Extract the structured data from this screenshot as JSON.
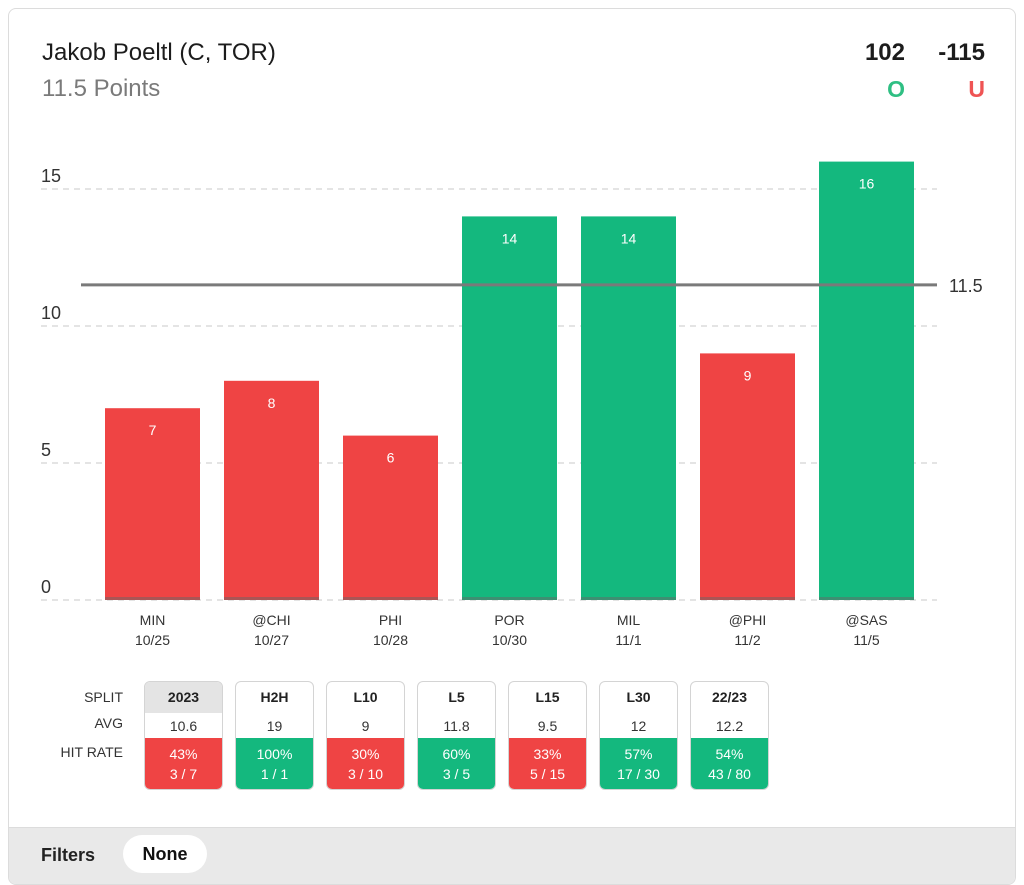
{
  "header": {
    "player": "Jakob Poeltl (C, TOR)",
    "prop": "11.5 Points",
    "over_odds": "102",
    "under_odds": "-115",
    "over_label": "O",
    "under_label": "U"
  },
  "colors": {
    "over": "#14b87e",
    "under": "#ef4444",
    "line": "#7a7a7a"
  },
  "chart_data": {
    "type": "bar",
    "categories": [
      "MIN",
      "@CHI",
      "PHI",
      "POR",
      "MIL",
      "@PHI",
      "@SAS"
    ],
    "dates": [
      "10/25",
      "10/27",
      "10/28",
      "10/30",
      "11/1",
      "11/2",
      "11/5"
    ],
    "values": [
      7,
      8,
      6,
      14,
      14,
      9,
      16
    ],
    "threshold": 11.5,
    "threshold_label": "11.5",
    "yticks": [
      0,
      5,
      10,
      15
    ],
    "ylim": [
      0,
      17
    ],
    "grid": true,
    "title": "",
    "xlabel": "",
    "ylabel": ""
  },
  "splits": {
    "row_labels": {
      "split": "SPLIT",
      "avg": "AVG",
      "hit_rate": "HIT RATE"
    },
    "columns": [
      {
        "label": "2023",
        "avg": "10.6",
        "pct": "43%",
        "record": "3 / 7",
        "status": "under",
        "selected": true
      },
      {
        "label": "H2H",
        "avg": "19",
        "pct": "100%",
        "record": "1 / 1",
        "status": "over",
        "selected": false
      },
      {
        "label": "L10",
        "avg": "9",
        "pct": "30%",
        "record": "3 / 10",
        "status": "under",
        "selected": false
      },
      {
        "label": "L5",
        "avg": "11.8",
        "pct": "60%",
        "record": "3 / 5",
        "status": "over",
        "selected": false
      },
      {
        "label": "L15",
        "avg": "9.5",
        "pct": "33%",
        "record": "5 / 15",
        "status": "under",
        "selected": false
      },
      {
        "label": "L30",
        "avg": "12",
        "pct": "57%",
        "record": "17 / 30",
        "status": "over",
        "selected": false
      },
      {
        "label": "22/23",
        "avg": "12.2",
        "pct": "54%",
        "record": "43 / 80",
        "status": "over",
        "selected": false
      }
    ]
  },
  "filters": {
    "label": "Filters",
    "value": "None"
  }
}
